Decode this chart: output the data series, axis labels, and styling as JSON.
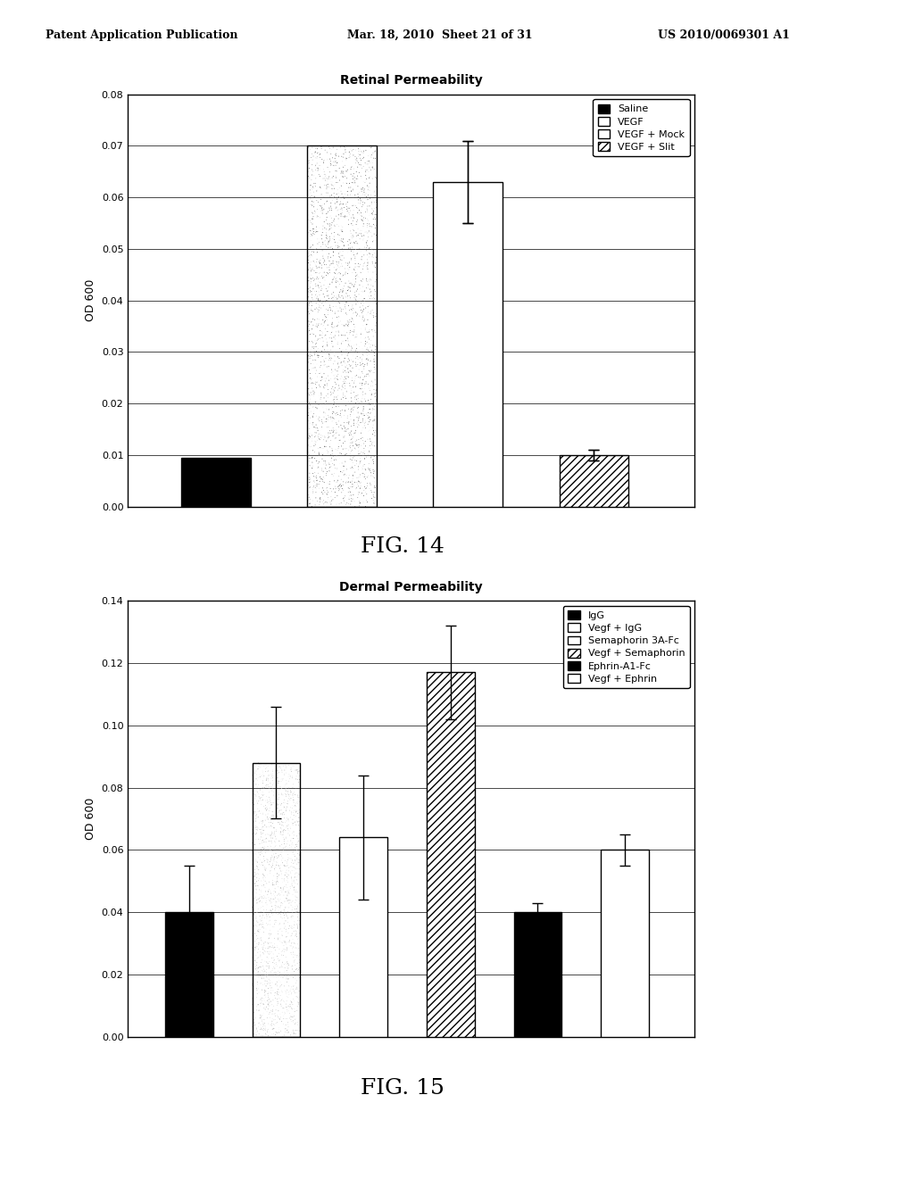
{
  "fig14": {
    "title": "Retinal Permeability",
    "ylabel": "OD 600",
    "ylim": [
      0,
      0.08
    ],
    "yticks": [
      0,
      0.01,
      0.02,
      0.03,
      0.04,
      0.05,
      0.06,
      0.07,
      0.08
    ],
    "bars": [
      {
        "label": "Saline",
        "value": 0.0095,
        "error": 0.0,
        "pattern": "solid_black"
      },
      {
        "label": "VEGF",
        "value": 0.07,
        "error": 0.0,
        "pattern": "grainy"
      },
      {
        "label": "VEGF + Mock",
        "value": 0.063,
        "error": 0.008,
        "pattern": "white"
      },
      {
        "label": "VEGF + Slit",
        "value": 0.01,
        "error": 0.001,
        "pattern": "hatch_diag"
      }
    ],
    "legend": [
      "Saline",
      "VEGF",
      "VEGF + Mock",
      "VEGF + Slit"
    ],
    "legend_patterns": [
      "solid_black",
      "white_outline",
      "white",
      "hatch_diag"
    ],
    "fig_label": "FIG. 14"
  },
  "fig15": {
    "title": "Dermal Permeability",
    "ylabel": "OD 600",
    "ylim": [
      0,
      0.14
    ],
    "yticks": [
      0,
      0.02,
      0.04,
      0.06,
      0.08,
      0.1,
      0.12,
      0.14
    ],
    "bars": [
      {
        "label": "IgG",
        "value": 0.04,
        "error": 0.015,
        "pattern": "solid_black"
      },
      {
        "label": "Vegf + IgG",
        "value": 0.088,
        "error": 0.018,
        "pattern": "grainy"
      },
      {
        "label": "Semaphorin 3A-Fc",
        "value": 0.064,
        "error": 0.02,
        "pattern": "white"
      },
      {
        "label": "Vegf + Semaphorin",
        "value": 0.117,
        "error": 0.015,
        "pattern": "hatch_diag"
      },
      {
        "label": "Ephrin-A1-Fc",
        "value": 0.04,
        "error": 0.003,
        "pattern": "solid_black2"
      },
      {
        "label": "Vegf + Ephrin",
        "value": 0.06,
        "error": 0.005,
        "pattern": "hatch_horiz"
      }
    ],
    "legend": [
      "IgG",
      "Vegf + IgG",
      "Semaphorin 3A-Fc",
      "Vegf + Semaphorin",
      "Ephrin-A1-Fc",
      "Vegf + Ephrin"
    ],
    "fig_label": "FIG. 15"
  },
  "header_text": "Patent Application Publication    Mar. 18, 2010  Sheet 21 of 31    US 2010/0069301 A1",
  "background_color": "#ffffff",
  "bar_width": 0.55,
  "font_size": 9,
  "title_font_size": 10
}
